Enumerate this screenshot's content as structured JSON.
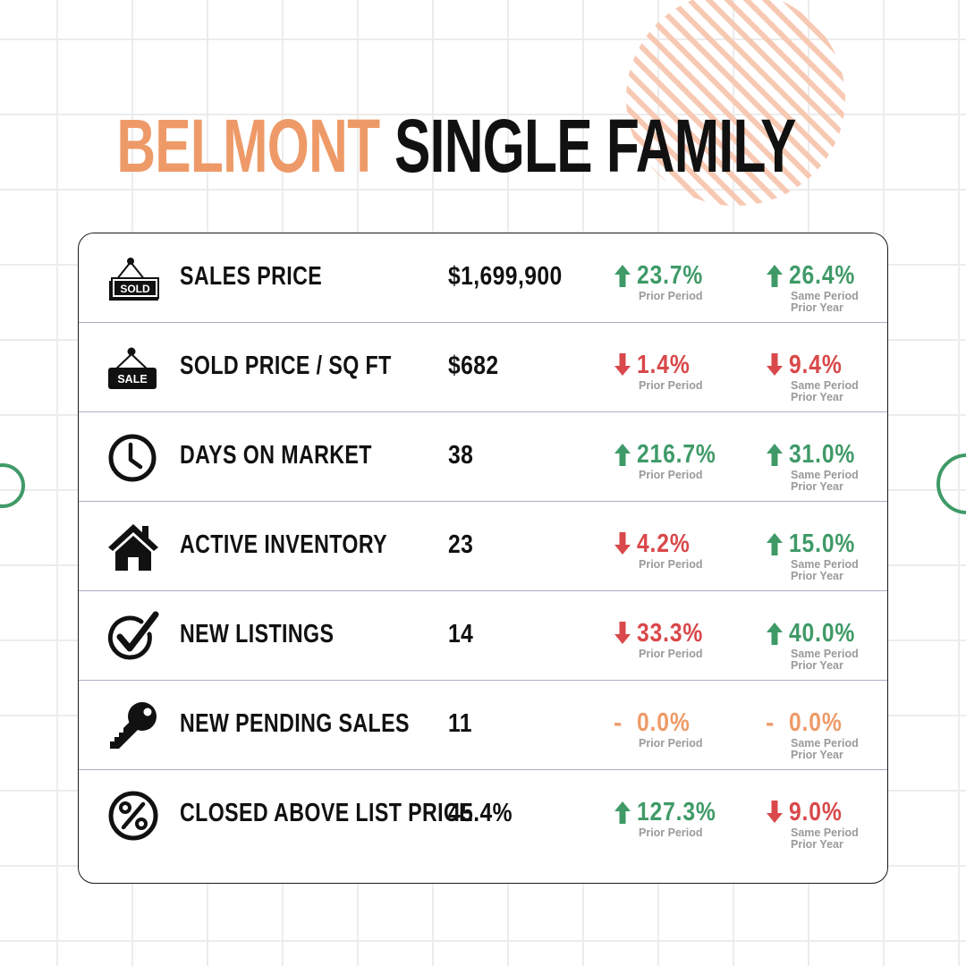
{
  "title": {
    "city": "BELMONT",
    "type": "SINGLE FAMILY"
  },
  "colors": {
    "accent": "#ee9a68",
    "up": "#3f9a67",
    "down": "#d9484a",
    "flat": "#ee9a68"
  },
  "rows": [
    {
      "icon": "sold-sign-icon",
      "icon_text": "SOLD",
      "label": "SALES PRICE",
      "value": "$1,699,900",
      "prior_period": {
        "direction": "up",
        "pct": "23.7%",
        "caption": "Prior Period"
      },
      "prior_year": {
        "direction": "up",
        "pct": "26.4%",
        "caption1": "Same Period",
        "caption2": "Prior Year"
      }
    },
    {
      "icon": "sale-sign-icon",
      "icon_text": "SALE",
      "label": "SOLD PRICE / SQ FT",
      "value": "$682",
      "prior_period": {
        "direction": "down",
        "pct": "1.4%",
        "caption": "Prior Period"
      },
      "prior_year": {
        "direction": "down",
        "pct": "9.4%",
        "caption1": "Same Period",
        "caption2": "Prior Year"
      }
    },
    {
      "icon": "clock-icon",
      "label": "DAYS ON MARKET",
      "value": "38",
      "prior_period": {
        "direction": "up",
        "pct": "216.7%",
        "caption": "Prior Period"
      },
      "prior_year": {
        "direction": "up",
        "pct": "31.0%",
        "caption1": "Same Period",
        "caption2": "Prior Year"
      }
    },
    {
      "icon": "house-icon",
      "label": "ACTIVE INVENTORY",
      "value": "23",
      "prior_period": {
        "direction": "down",
        "pct": "4.2%",
        "caption": "Prior Period"
      },
      "prior_year": {
        "direction": "up",
        "pct": "15.0%",
        "caption1": "Same Period",
        "caption2": "Prior Year"
      }
    },
    {
      "icon": "checkmark-circle-icon",
      "label": "NEW LISTINGS",
      "value": "14",
      "prior_period": {
        "direction": "down",
        "pct": "33.3%",
        "caption": "Prior Period"
      },
      "prior_year": {
        "direction": "up",
        "pct": "40.0%",
        "caption1": "Same Period",
        "caption2": "Prior Year"
      }
    },
    {
      "icon": "key-icon",
      "label": "NEW PENDING SALES",
      "value": "11",
      "prior_period": {
        "direction": "flat",
        "pct": "0.0%",
        "caption": "Prior Period"
      },
      "prior_year": {
        "direction": "flat",
        "pct": "0.0%",
        "caption1": "Same Period",
        "caption2": "Prior Year"
      }
    },
    {
      "icon": "percent-circle-icon",
      "label": "CLOSED ABOVE LIST PRICE",
      "value": "45.4%",
      "prior_period": {
        "direction": "up",
        "pct": "127.3%",
        "caption": "Prior Period"
      },
      "prior_year": {
        "direction": "down",
        "pct": "9.0%",
        "caption1": "Same Period",
        "caption2": "Prior Year"
      }
    }
  ]
}
